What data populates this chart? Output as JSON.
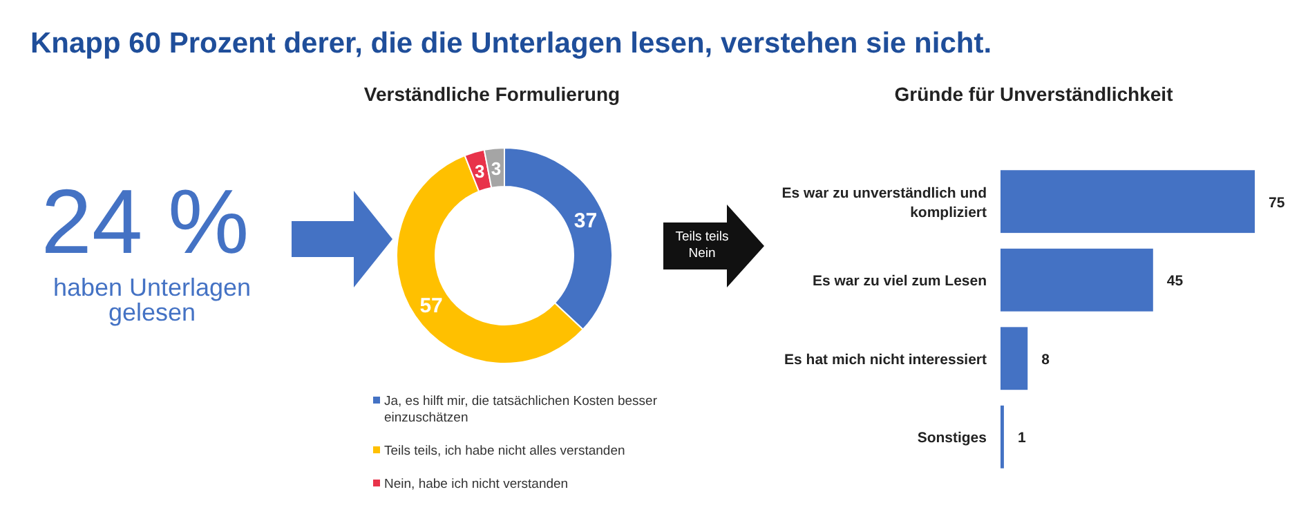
{
  "chart_data": [
    {
      "type": "other",
      "title": "Knapp 60 Prozent derer, die die Unterlagen lesen, verstehen sie nicht.",
      "annotations": [
        "24 %",
        "haben Unterlagen gelesen"
      ]
    },
    {
      "type": "donut",
      "title": "Verständliche Formulierung",
      "categories": [
        "Ja, es hilft mir, die tatsächlichen Kosten besser einzuschätzen",
        "Teils teils, ich habe nicht alles verstanden",
        "Nein, habe ich nicht verstanden",
        null
      ],
      "values": [
        37,
        57,
        3,
        3
      ],
      "colors": [
        "#4472c4",
        "#ffc000",
        "#e8334a",
        "#a5a5a5"
      ],
      "data_labels": true,
      "legend": "bottom"
    },
    {
      "type": "bar",
      "title": "Gründe für Unverständlichkeit",
      "orientation": "horizontal",
      "categories": [
        "Es war zu unverständlich und kompliziert",
        "Es war zu viel zum Lesen",
        "Es hat mich nicht interessiert",
        "Sonstiges"
      ],
      "values": [
        75,
        45,
        8,
        1
      ],
      "color": "#4472c4",
      "data_labels": true,
      "annotations": [
        "Teils teils Nein"
      ]
    }
  ]
}
